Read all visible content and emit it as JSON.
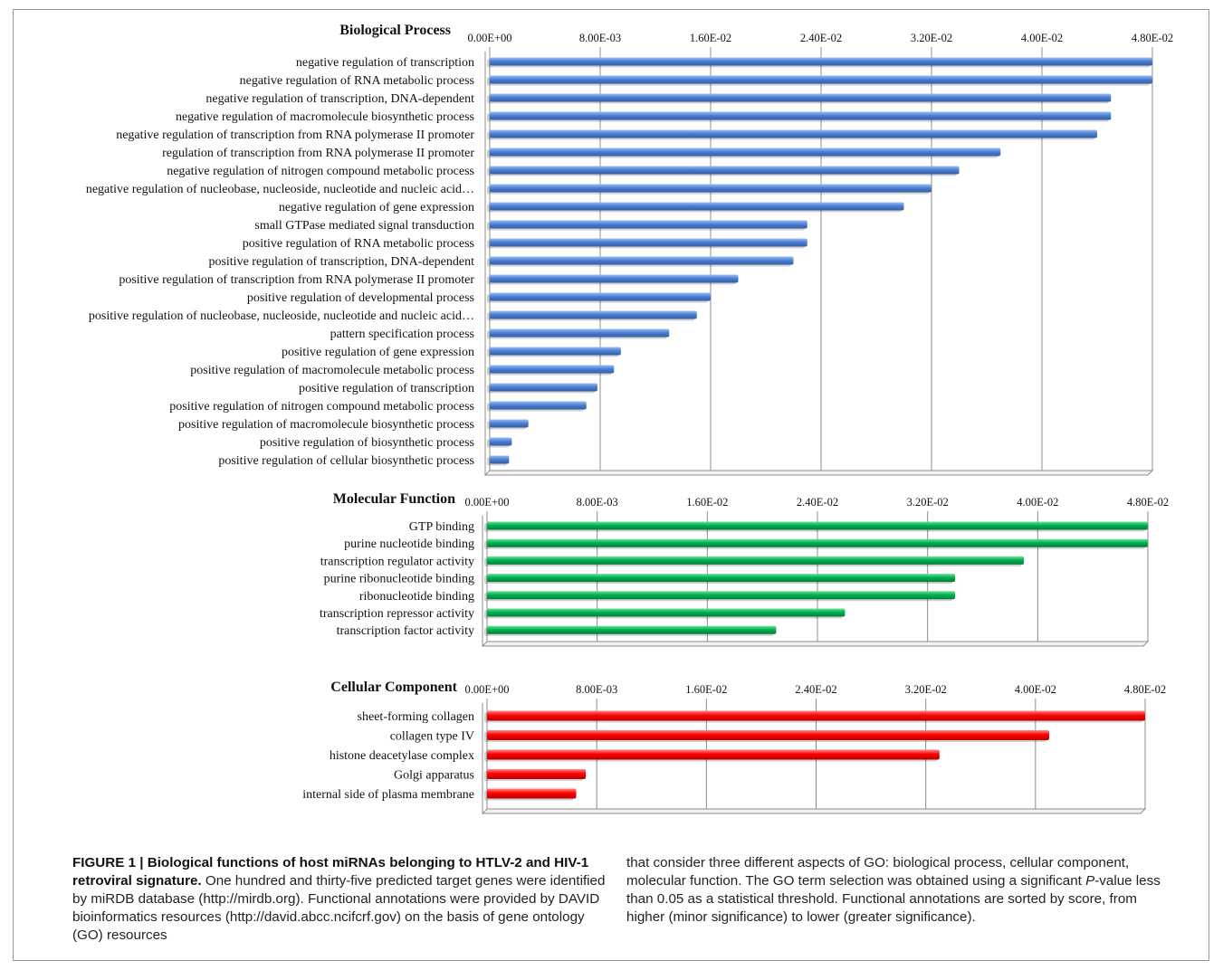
{
  "colors": {
    "process": "#4f81d3",
    "function": "#00b050",
    "component": "#ff0000"
  },
  "chart_data": [
    {
      "type": "bar",
      "orientation": "horizontal",
      "title": "Biological Process",
      "xlim": [
        0,
        0.048
      ],
      "tick_labels": [
        "0.00E+00",
        "8.00E-03",
        "1.60E-02",
        "2.40E-02",
        "3.20E-02",
        "4.00E-02",
        "4.80E-02"
      ],
      "grid": true,
      "categories": [
        "negative regulation of transcription",
        "negative regulation of RNA metabolic process",
        "negative regulation of transcription, DNA-dependent",
        "negative regulation of macromolecule biosynthetic process",
        "negative regulation of transcription from RNA polymerase II promoter",
        "regulation of transcription from RNA polymerase II promoter",
        "negative regulation of nitrogen compound metabolic process",
        "negative regulation of nucleobase, nucleoside, nucleotide and nucleic acid…",
        "negative regulation of gene expression",
        "small GTPase mediated signal transduction",
        "positive regulation of RNA metabolic process",
        "positive regulation of transcription, DNA-dependent",
        "positive regulation of transcription from RNA polymerase II promoter",
        "positive regulation of developmental process",
        "positive regulation of nucleobase, nucleoside, nucleotide and nucleic acid…",
        "pattern specification process",
        "positive regulation of gene expression",
        "positive regulation of macromolecule metabolic process",
        "positive regulation of transcription",
        "positive regulation of nitrogen compound metabolic process",
        "positive regulation of macromolecule biosynthetic process",
        "positive regulation of biosynthetic process",
        "positive regulation of cellular biosynthetic process"
      ],
      "values": [
        0.048,
        0.048,
        0.045,
        0.045,
        0.044,
        0.037,
        0.034,
        0.032,
        0.03,
        0.023,
        0.023,
        0.022,
        0.018,
        0.016,
        0.015,
        0.013,
        0.0095,
        0.009,
        0.0078,
        0.007,
        0.0028,
        0.0016,
        0.0014
      ]
    },
    {
      "type": "bar",
      "orientation": "horizontal",
      "title": "Molecular Function",
      "xlim": [
        0,
        0.048
      ],
      "tick_labels": [
        "0.00E+00",
        "8.00E-03",
        "1.60E-02",
        "2.40E-02",
        "3.20E-02",
        "4.00E-02",
        "4.80E-02"
      ],
      "grid": true,
      "categories": [
        "GTP binding",
        "purine nucleotide binding",
        "transcription regulator activity",
        "purine ribonucleotide binding",
        "ribonucleotide binding",
        "transcription repressor activity",
        "transcription factor activity"
      ],
      "values": [
        0.048,
        0.048,
        0.039,
        0.034,
        0.034,
        0.026,
        0.021
      ]
    },
    {
      "type": "bar",
      "orientation": "horizontal",
      "title": "Cellular Component",
      "xlim": [
        0,
        0.048
      ],
      "tick_labels": [
        "0.00E+00",
        "8.00E-03",
        "1.60E-02",
        "2.40E-02",
        "3.20E-02",
        "4.00E-02",
        "4.80E-02"
      ],
      "grid": true,
      "categories": [
        "sheet-forming collagen",
        "collagen type IV",
        "histone deacetylase complex",
        "Golgi apparatus",
        "internal side of plasma membrane"
      ],
      "values": [
        0.048,
        0.041,
        0.033,
        0.0072,
        0.0065
      ]
    }
  ],
  "caption": {
    "figure_label": "FIGURE 1 | ",
    "title": "Biological functions of host miRNAs belonging to HTLV-2 and HIV-1 retroviral signature.",
    "text_part1": " One hundred and thirty-five predicted target genes were identified by miRDB database (http://mirdb.org). Functional annotations were provided by DAVID bioinformatics resources (http://david.abcc.ncifcrf.gov) on the basis of gene ontology (GO) resources",
    "text_part2_a": "that consider three different aspects of GO: biological process, cellular component, molecular function. The GO term selection was obtained using a significant ",
    "text_part2_p": "P",
    "text_part2_b": "-value less than 0.05 as a statistical threshold. Functional annotations are sorted by score, from higher (minor significance) to lower (greater significance)."
  }
}
